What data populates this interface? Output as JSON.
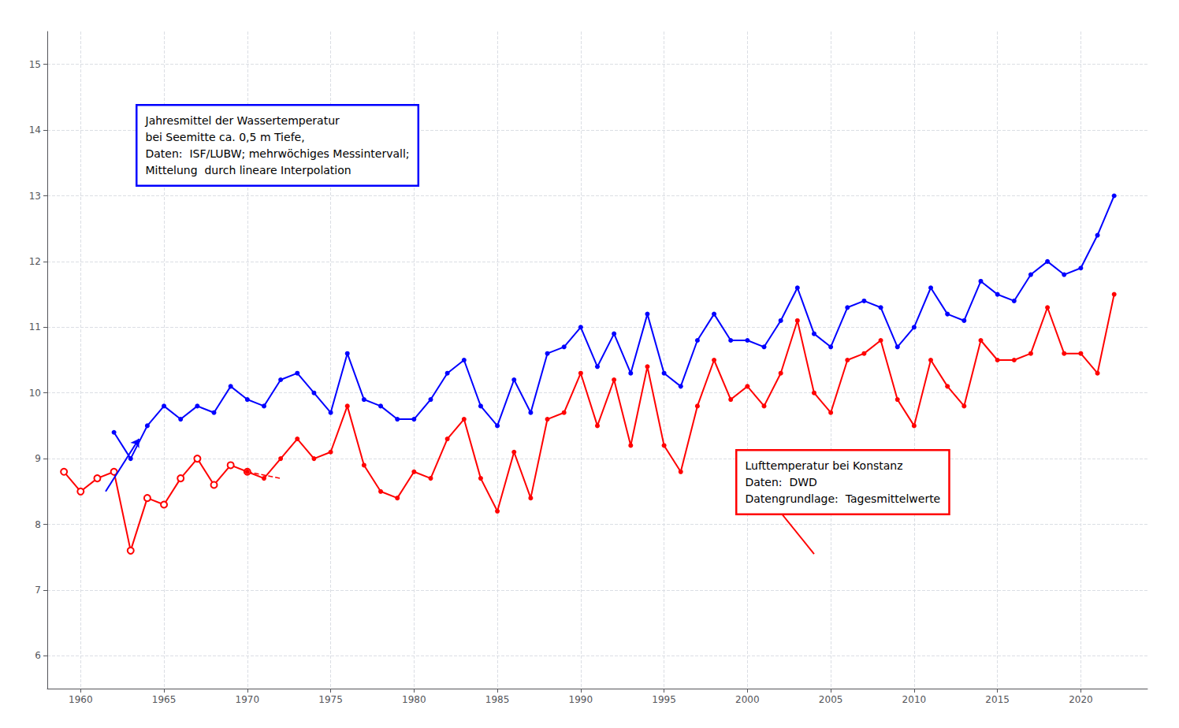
{
  "chart_data": {
    "type": "line",
    "xlim": [
      1958,
      2024
    ],
    "ylim": [
      5.5,
      15.5
    ],
    "xticks": [
      1960,
      1965,
      1970,
      1975,
      1980,
      1985,
      1990,
      1995,
      2000,
      2005,
      2010,
      2015,
      2020
    ],
    "yticks": [
      6,
      7,
      8,
      9,
      10,
      11,
      12,
      13,
      14,
      15
    ],
    "grid": true,
    "series": [
      {
        "color": "#0000ff",
        "marker": "circle",
        "line_style": "solid",
        "x": [
          1962,
          1963,
          1964,
          1965,
          1966,
          1967,
          1968,
          1969,
          1970,
          1971,
          1972,
          1973,
          1974,
          1975,
          1976,
          1977,
          1978,
          1979,
          1980,
          1981,
          1982,
          1983,
          1984,
          1985,
          1986,
          1987,
          1988,
          1989,
          1990,
          1991,
          1992,
          1993,
          1994,
          1995,
          1996,
          1997,
          1998,
          1999,
          2000,
          2001,
          2002,
          2003,
          2004,
          2005,
          2006,
          2007,
          2008,
          2009,
          2010,
          2011,
          2012,
          2013,
          2014,
          2015,
          2016,
          2017,
          2018,
          2019,
          2020,
          2021,
          2022
        ],
        "values": [
          9.4,
          9.0,
          9.5,
          9.8,
          9.6,
          9.8,
          9.7,
          10.1,
          9.9,
          9.8,
          10.2,
          10.3,
          10.0,
          9.7,
          10.6,
          9.9,
          9.8,
          9.6,
          9.6,
          9.9,
          10.3,
          10.5,
          9.8,
          9.5,
          10.2,
          9.7,
          10.6,
          10.7,
          11.0,
          10.4,
          10.9,
          10.3,
          11.2,
          10.3,
          10.1,
          10.8,
          11.2,
          10.8,
          10.8,
          10.7,
          11.1,
          11.6,
          10.9,
          10.7,
          11.3,
          11.4,
          11.3,
          10.7,
          11.0,
          11.6,
          11.2,
          11.1,
          11.7,
          11.5,
          11.4,
          11.8,
          12.0,
          11.8,
          11.9,
          12.4,
          13.0
        ]
      },
      {
        "color": "#ff0000",
        "marker": "open_circle",
        "line_style": "solid",
        "x": [
          1959,
          1960,
          1961,
          1962,
          1963,
          1964,
          1965,
          1966,
          1967,
          1968,
          1969,
          1970
        ],
        "values": [
          8.8,
          8.5,
          8.7,
          8.8,
          7.6,
          8.4,
          8.3,
          8.7,
          9.0,
          8.6,
          8.9,
          8.8
        ]
      },
      {
        "color": "#ff0000",
        "marker": "circle",
        "line_style": "solid",
        "x": [
          1970,
          1971,
          1972,
          1973,
          1974,
          1975,
          1976,
          1977,
          1978,
          1979,
          1980,
          1981,
          1982,
          1983,
          1984,
          1985,
          1986,
          1987,
          1988,
          1989,
          1990,
          1991,
          1992,
          1993,
          1994,
          1995,
          1996,
          1997,
          1998,
          1999,
          2000,
          2001,
          2002,
          2003,
          2004,
          2005,
          2006,
          2007,
          2008,
          2009,
          2010,
          2011,
          2012,
          2013,
          2014,
          2015,
          2016,
          2017,
          2018,
          2019,
          2020,
          2021,
          2022
        ],
        "values": [
          8.8,
          8.7,
          9.0,
          9.3,
          9.0,
          9.1,
          9.8,
          8.9,
          8.5,
          8.4,
          8.8,
          8.7,
          9.3,
          9.6,
          8.7,
          8.2,
          9.1,
          8.4,
          9.6,
          9.7,
          10.3,
          9.5,
          10.2,
          9.2,
          10.4,
          9.2,
          8.8,
          9.8,
          10.5,
          9.9,
          10.1,
          9.8,
          10.3,
          11.1,
          10.0,
          9.7,
          10.5,
          10.6,
          10.8,
          9.9,
          9.5,
          10.5,
          10.1,
          9.8,
          10.8,
          10.5,
          10.5,
          10.6,
          11.3,
          10.6,
          10.6,
          10.3,
          11.5
        ]
      },
      {
        "color": "#ff0000",
        "marker": "none",
        "line_style": "dashed",
        "x": [
          1970,
          1972
        ],
        "values": [
          8.8,
          8.7
        ]
      }
    ],
    "arrows": [
      {
        "from": [
          1961.5,
          8.5
        ],
        "to": [
          1963.5,
          9.3
        ],
        "color": "#0000ff"
      },
      {
        "from": [
          2004,
          7.55
        ],
        "to": [
          2000.5,
          8.65
        ],
        "color": "#ff0000"
      }
    ],
    "annotations": [
      {
        "text": "Jahresmittel der Wassertemperatur\nbei Seemitte ca. 0,5 m Tiefe,\nDaten:  ISF/LUBW; mehrwöchiges Messintervall;\nMittelung  durch lineare Interpolation",
        "color": "#0000ff"
      },
      {
        "text": "Lufttemperatur bei Konstanz\nDaten:  DWD\nDatengrundlage:  Tagesmittelwerte",
        "color": "#ff0000"
      }
    ]
  }
}
